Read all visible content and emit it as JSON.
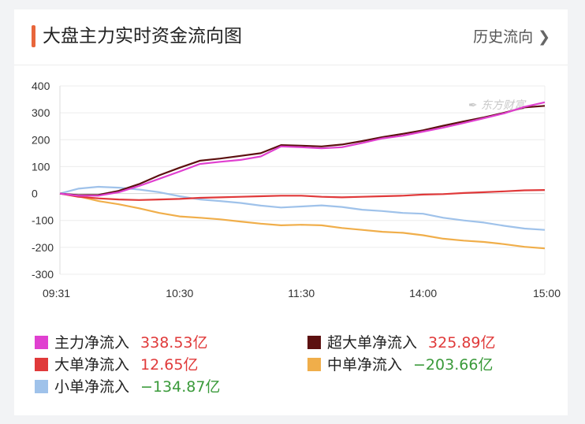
{
  "header": {
    "title": "大盘主力实时资金流向图",
    "history_label": "历史流向"
  },
  "colors": {
    "accent": "#e8663b",
    "positive": "#e03a3a",
    "negative": "#3a9a3a"
  },
  "chart_data": {
    "type": "line",
    "watermark": "东方财富",
    "ylim": [
      -300,
      400
    ],
    "yticks": [
      400,
      300,
      200,
      100,
      0,
      -100,
      -200,
      -300
    ],
    "xlim": [
      "09:31",
      "15:00"
    ],
    "xticks": [
      "09:31",
      "10:30",
      "11:30",
      "14:00",
      "15:00"
    ],
    "series": [
      {
        "name": "主力净流入",
        "value": "338.53亿",
        "color": "#e040d0",
        "value_color": "#e03a3a",
        "points": [
          [
            "09:31",
            0
          ],
          [
            "09:40",
            -8
          ],
          [
            "09:50",
            -8
          ],
          [
            "10:00",
            5
          ],
          [
            "10:10",
            28
          ],
          [
            "10:20",
            55
          ],
          [
            "10:30",
            82
          ],
          [
            "10:40",
            110
          ],
          [
            "10:50",
            118
          ],
          [
            "11:00",
            125
          ],
          [
            "11:10",
            138
          ],
          [
            "11:20",
            175
          ],
          [
            "11:30",
            172
          ],
          [
            "13:10",
            168
          ],
          [
            "13:20",
            172
          ],
          [
            "13:30",
            188
          ],
          [
            "13:40",
            205
          ],
          [
            "13:50",
            215
          ],
          [
            "14:00",
            230
          ],
          [
            "14:10",
            245
          ],
          [
            "14:20",
            262
          ],
          [
            "14:30",
            280
          ],
          [
            "14:40",
            298
          ],
          [
            "14:50",
            322
          ],
          [
            "15:00",
            339
          ]
        ]
      },
      {
        "name": "超大单净流入",
        "value": "325.89亿",
        "color": "#5c1010",
        "value_color": "#e03a3a",
        "points": [
          [
            "09:31",
            0
          ],
          [
            "09:40",
            -6
          ],
          [
            "09:50",
            -5
          ],
          [
            "10:00",
            10
          ],
          [
            "10:10",
            35
          ],
          [
            "10:20",
            68
          ],
          [
            "10:30",
            96
          ],
          [
            "10:40",
            122
          ],
          [
            "10:50",
            130
          ],
          [
            "11:00",
            140
          ],
          [
            "11:10",
            150
          ],
          [
            "11:20",
            180
          ],
          [
            "11:30",
            178
          ],
          [
            "13:10",
            175
          ],
          [
            "13:20",
            182
          ],
          [
            "13:30",
            195
          ],
          [
            "13:40",
            210
          ],
          [
            "13:50",
            222
          ],
          [
            "14:00",
            235
          ],
          [
            "14:10",
            252
          ],
          [
            "14:20",
            268
          ],
          [
            "14:30",
            283
          ],
          [
            "14:40",
            300
          ],
          [
            "14:50",
            320
          ],
          [
            "15:00",
            326
          ]
        ]
      },
      {
        "name": "大单净流入",
        "value": "12.65亿",
        "color": "#e0393a",
        "value_color": "#e03a3a",
        "points": [
          [
            "09:31",
            0
          ],
          [
            "09:40",
            -12
          ],
          [
            "09:50",
            -18
          ],
          [
            "10:00",
            -22
          ],
          [
            "10:10",
            -24
          ],
          [
            "10:20",
            -22
          ],
          [
            "10:30",
            -20
          ],
          [
            "10:40",
            -16
          ],
          [
            "10:50",
            -14
          ],
          [
            "11:00",
            -12
          ],
          [
            "11:10",
            -10
          ],
          [
            "11:20",
            -8
          ],
          [
            "11:30",
            -8
          ],
          [
            "13:10",
            -12
          ],
          [
            "13:20",
            -14
          ],
          [
            "13:30",
            -12
          ],
          [
            "13:40",
            -10
          ],
          [
            "13:50",
            -8
          ],
          [
            "14:00",
            -4
          ],
          [
            "14:10",
            -2
          ],
          [
            "14:20",
            2
          ],
          [
            "14:30",
            5
          ],
          [
            "14:40",
            8
          ],
          [
            "14:50",
            12
          ],
          [
            "15:00",
            13
          ]
        ]
      },
      {
        "name": "中单净流入",
        "value": "−203.66亿",
        "color": "#f0ae4a",
        "value_color": "#3a9a3a",
        "points": [
          [
            "09:31",
            0
          ],
          [
            "09:40",
            -10
          ],
          [
            "09:50",
            -28
          ],
          [
            "10:00",
            -40
          ],
          [
            "10:10",
            -55
          ],
          [
            "10:20",
            -72
          ],
          [
            "10:30",
            -85
          ],
          [
            "10:40",
            -90
          ],
          [
            "10:50",
            -96
          ],
          [
            "11:00",
            -104
          ],
          [
            "11:10",
            -112
          ],
          [
            "11:20",
            -118
          ],
          [
            "11:30",
            -116
          ],
          [
            "13:10",
            -118
          ],
          [
            "13:20",
            -128
          ],
          [
            "13:30",
            -135
          ],
          [
            "13:40",
            -142
          ],
          [
            "13:50",
            -146
          ],
          [
            "14:00",
            -155
          ],
          [
            "14:10",
            -168
          ],
          [
            "14:20",
            -175
          ],
          [
            "14:30",
            -180
          ],
          [
            "14:40",
            -188
          ],
          [
            "14:50",
            -198
          ],
          [
            "15:00",
            -204
          ]
        ]
      },
      {
        "name": "小单净流入",
        "value": "−134.87亿",
        "color": "#9fc2ea",
        "value_color": "#3a9a3a",
        "points": [
          [
            "09:31",
            0
          ],
          [
            "09:40",
            18
          ],
          [
            "09:50",
            25
          ],
          [
            "10:00",
            22
          ],
          [
            "10:10",
            15
          ],
          [
            "10:20",
            5
          ],
          [
            "10:30",
            -10
          ],
          [
            "10:40",
            -22
          ],
          [
            "10:50",
            -28
          ],
          [
            "11:00",
            -35
          ],
          [
            "11:10",
            -45
          ],
          [
            "11:20",
            -52
          ],
          [
            "11:30",
            -48
          ],
          [
            "13:10",
            -44
          ],
          [
            "13:20",
            -50
          ],
          [
            "13:30",
            -60
          ],
          [
            "13:40",
            -65
          ],
          [
            "13:50",
            -72
          ],
          [
            "14:00",
            -75
          ],
          [
            "14:10",
            -90
          ],
          [
            "14:20",
            -100
          ],
          [
            "14:30",
            -108
          ],
          [
            "14:40",
            -120
          ],
          [
            "14:50",
            -130
          ],
          [
            "15:00",
            -135
          ]
        ]
      }
    ]
  }
}
